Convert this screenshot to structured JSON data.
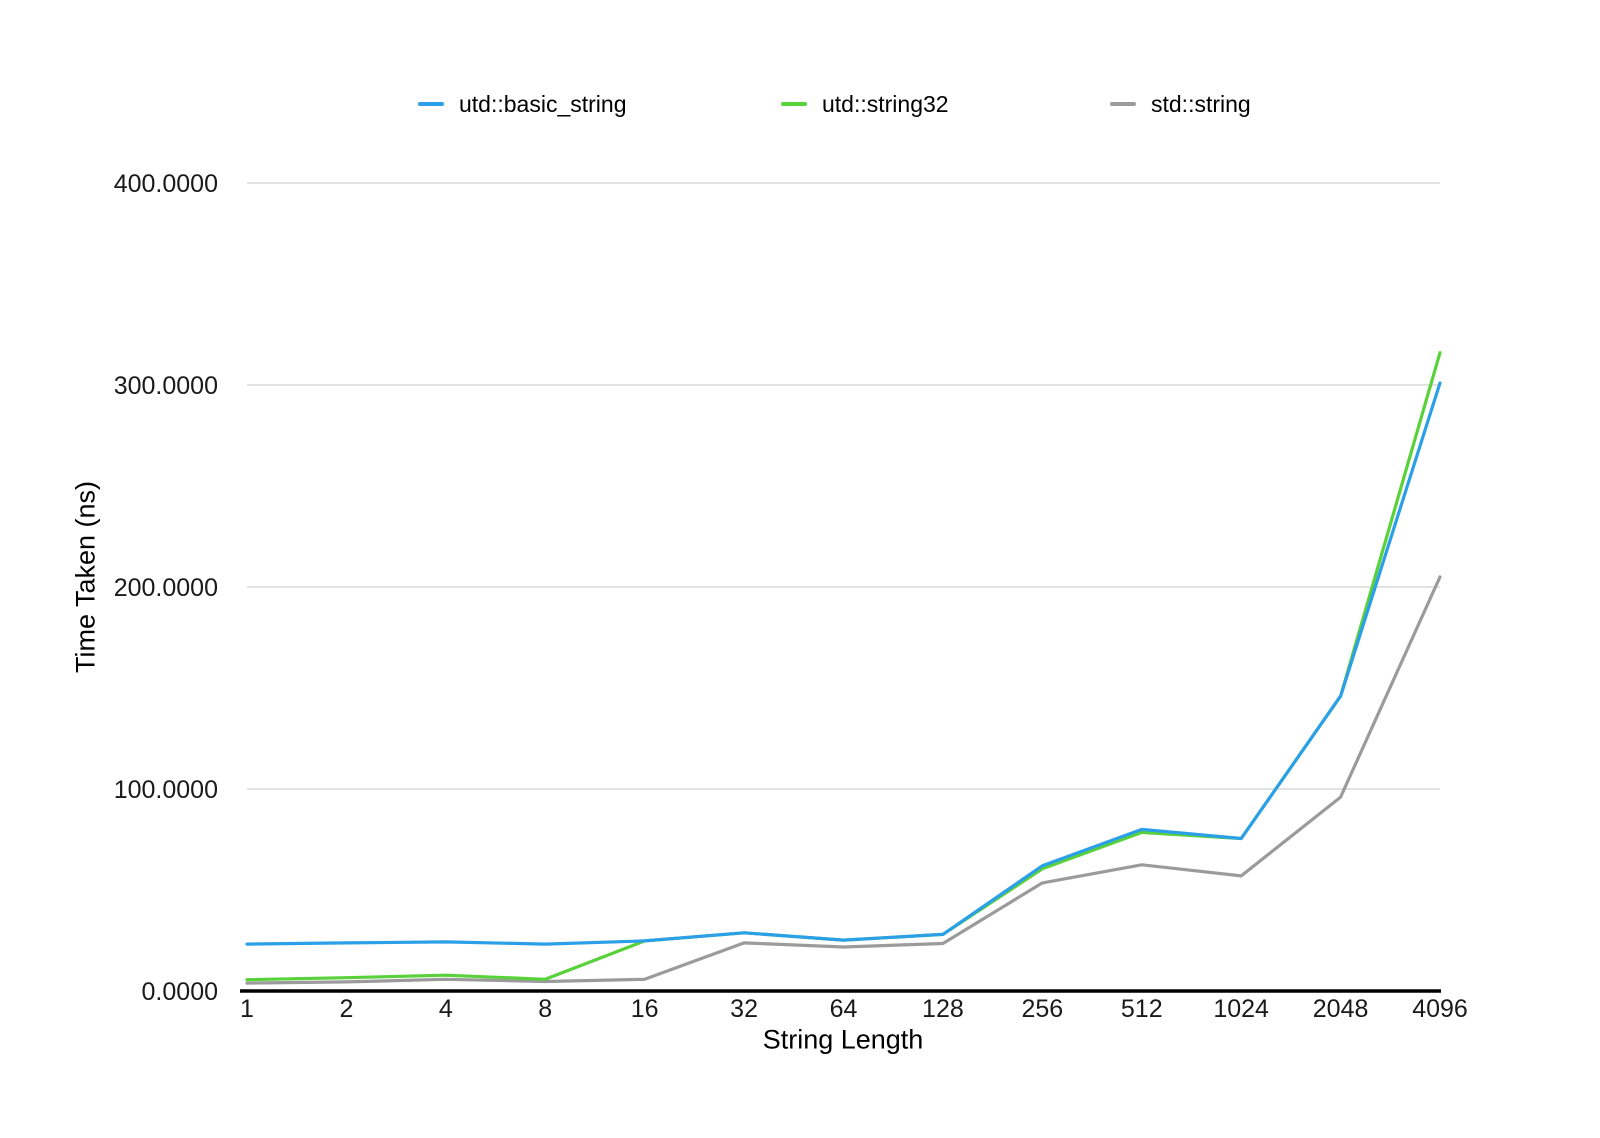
{
  "chart_data": {
    "type": "line",
    "title": "",
    "xlabel": "String Length",
    "ylabel": "Time Taken (ns)",
    "categories": [
      "1",
      "2",
      "4",
      "8",
      "16",
      "32",
      "64",
      "128",
      "256",
      "512",
      "1024",
      "2048",
      "4096"
    ],
    "series": [
      {
        "name": "utd::basic_string",
        "color": "#2b9fe8",
        "values": [
          23.2,
          23.8,
          24.3,
          23.2,
          24.8,
          28.8,
          25.2,
          28.0,
          62.0,
          80.0,
          75.5,
          146.0,
          301.0
        ]
      },
      {
        "name": "utd::string32",
        "color": "#58d13a",
        "values": [
          5.6,
          6.6,
          7.8,
          5.8,
          24.8,
          28.8,
          25.2,
          28.0,
          60.5,
          78.5,
          75.5,
          146.0,
          316.0
        ]
      },
      {
        "name": "std::string",
        "color": "#9b9b9b",
        "values": [
          3.9,
          4.5,
          5.8,
          4.7,
          5.8,
          23.8,
          21.8,
          23.5,
          53.5,
          62.5,
          57.0,
          96.0,
          205.0
        ]
      }
    ],
    "ylim": [
      0,
      400
    ],
    "yticks": [
      {
        "value": 0,
        "label": "0.0000"
      },
      {
        "value": 100,
        "label": "100.0000"
      },
      {
        "value": 200,
        "label": "200.0000"
      },
      {
        "value": 300,
        "label": "300.0000"
      },
      {
        "value": 400,
        "label": "400.0000"
      }
    ],
    "grid": true,
    "legend_position": "top"
  },
  "colors": {
    "background": "#ffffff",
    "gridline": "#d9d9d9",
    "axis_line": "#000000",
    "tick_text": "#1a1a1a"
  }
}
